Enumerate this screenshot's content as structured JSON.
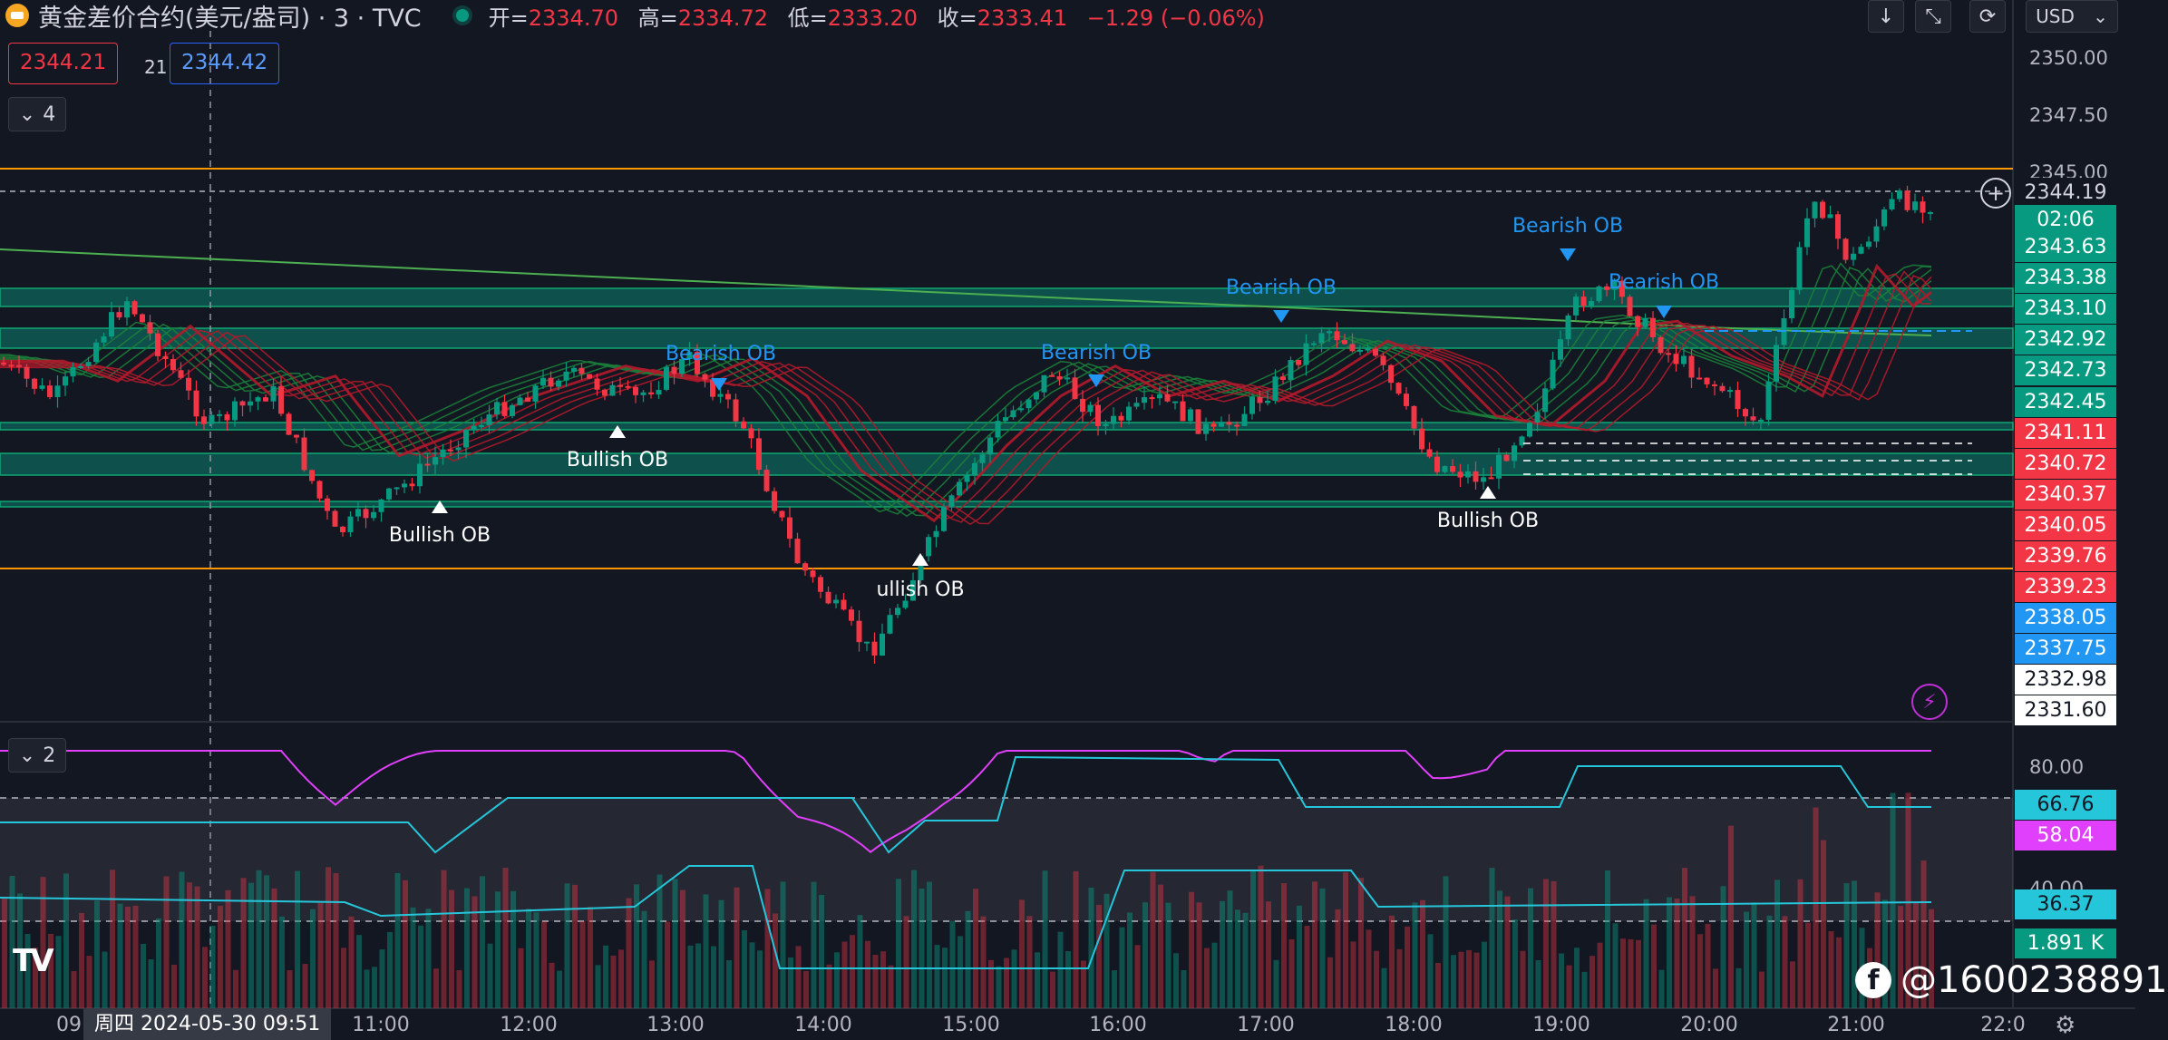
{
  "header": {
    "symbol_title": "黄金差价合约(美元/盎司) · 3 · TVC",
    "open_label": "开=",
    "open": "2334.70",
    "high_label": "高=",
    "high": "2334.72",
    "low_label": "低=",
    "low": "2333.20",
    "close_label": "收=",
    "close": "2333.41",
    "change": "−1.29 (−0.06%)"
  },
  "price_boxes": {
    "sell": "2344.21",
    "spread": "21",
    "buy": "2344.42"
  },
  "pane_buttons": {
    "main": "4",
    "indicator": "2"
  },
  "currency": "USD",
  "axis_ticks": [
    "2350.00",
    "2347.50",
    "2345.00",
    "80.00",
    "40.00"
  ],
  "price_labels": [
    {
      "value": "2344.19",
      "color": "#131722",
      "text_color": "#d1d4dc"
    },
    {
      "value": "02:06",
      "color": "#089981",
      "text_color": "#ffffff"
    },
    {
      "value": "2343.63",
      "color": "#089981"
    },
    {
      "value": "2343.38",
      "color": "#089981"
    },
    {
      "value": "2343.10",
      "color": "#089981"
    },
    {
      "value": "2342.92",
      "color": "#089981"
    },
    {
      "value": "2342.73",
      "color": "#089981"
    },
    {
      "value": "2342.45",
      "color": "#089981"
    },
    {
      "value": "2341.11",
      "color": "#f23645"
    },
    {
      "value": "2340.72",
      "color": "#f23645"
    },
    {
      "value": "2340.37",
      "color": "#f23645"
    },
    {
      "value": "2340.05",
      "color": "#f23645"
    },
    {
      "value": "2339.76",
      "color": "#f23645"
    },
    {
      "value": "2339.23",
      "color": "#f23645"
    },
    {
      "value": "2338.05",
      "color": "#2196f3"
    },
    {
      "value": "2337.75",
      "color": "#2196f3"
    },
    {
      "value": "2332.98",
      "color": "#ffffff"
    },
    {
      "value": "2331.60",
      "color": "#ffffff"
    }
  ],
  "indicator_labels": [
    {
      "value": "66.76",
      "color": "#26c6da"
    },
    {
      "value": "58.04",
      "color": "#e040fb"
    },
    {
      "value": "36.37",
      "color": "#26c6da"
    },
    {
      "value": "1.891 K",
      "color": "#089981"
    }
  ],
  "annotations": {
    "bearish": "Bearish OB",
    "bullish": "Bullish OB",
    "bullish_partial": "ullish OB"
  },
  "time_axis": {
    "crosshair_date": "周四 2024-05-30   09:51",
    "first_partial": "09",
    "labels": [
      "11:00",
      "12:00",
      "13:00",
      "14:00",
      "15:00",
      "16:00",
      "17:00",
      "18:00",
      "19:00",
      "20:00",
      "21:00",
      "22:0"
    ]
  },
  "watermark": "@1600238891",
  "tv_logo": "TV",
  "icons": {
    "down_arrow": "↓",
    "collapse": "⤡",
    "refresh": "⟳",
    "chevron": "⌄",
    "bolt": "⚡",
    "plus": "+",
    "gear": "⚙",
    "fb": "f"
  }
}
